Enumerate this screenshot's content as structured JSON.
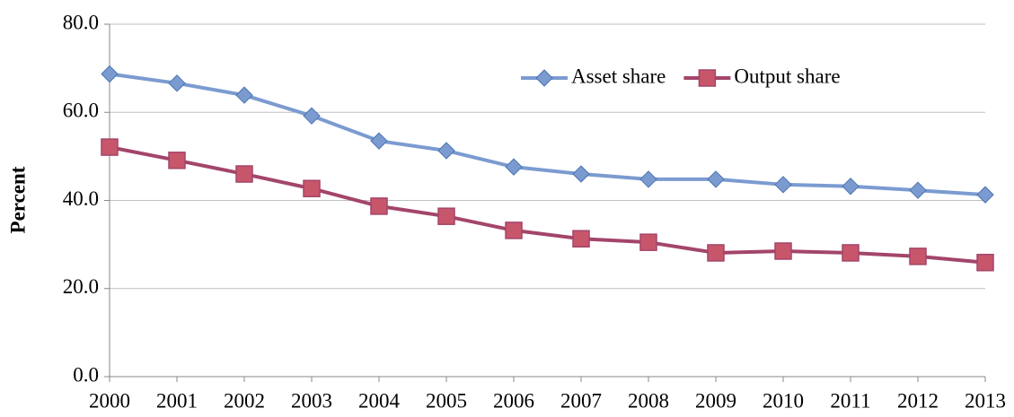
{
  "chart_data": {
    "type": "line",
    "y_label": "Percent",
    "categories": [
      "2000",
      "2001",
      "2002",
      "2003",
      "2004",
      "2005",
      "2006",
      "2007",
      "2008",
      "2009",
      "2010",
      "2011",
      "2012",
      "2013"
    ],
    "series": [
      {
        "name": "Asset share",
        "color": "#7b9bd0",
        "marker": "diamond",
        "values": [
          68.7,
          66.6,
          63.9,
          59.2,
          53.5,
          51.3,
          47.6,
          46.0,
          44.8,
          44.8,
          43.6,
          43.2,
          42.3,
          41.3
        ]
      },
      {
        "name": "Output share",
        "color": "#a3456b",
        "marker": "square",
        "values": [
          52.1,
          49.1,
          46.0,
          42.7,
          38.7,
          36.4,
          33.2,
          31.3,
          30.5,
          28.1,
          28.5,
          28.1,
          27.3,
          25.9
        ]
      }
    ],
    "ylim": [
      0,
      80
    ],
    "yticks": [
      {
        "value": 0,
        "label": "0.0"
      },
      {
        "value": 20,
        "label": "20.0"
      },
      {
        "value": 40,
        "label": "40.0"
      },
      {
        "value": 60,
        "label": "60.0"
      },
      {
        "value": 80,
        "label": "80.0"
      }
    ],
    "grid": true,
    "legend": "top"
  }
}
